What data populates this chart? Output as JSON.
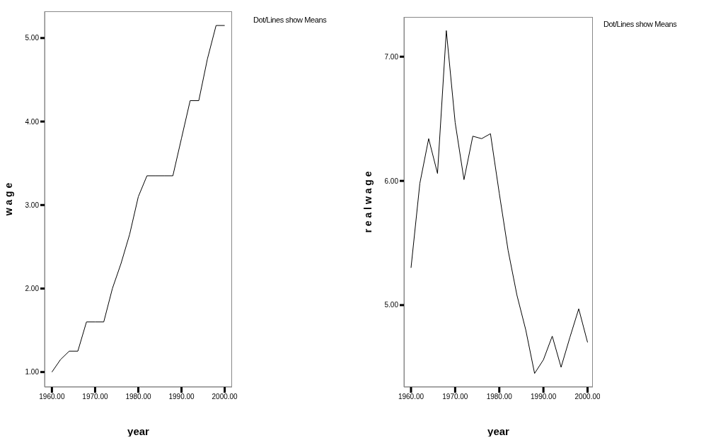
{
  "chart_data": [
    {
      "type": "line",
      "xlabel": "year",
      "ylabel": "w a g e",
      "annotations": [
        "Dot/Lines show Means"
      ],
      "x": [
        1960,
        1962,
        1964,
        1966,
        1968,
        1970,
        1972,
        1974,
        1976,
        1978,
        1980,
        1982,
        1984,
        1986,
        1988,
        1990,
        1992,
        1994,
        1996,
        1998,
        2000
      ],
      "series": [
        {
          "color": "#000000",
          "values": [
            1.0,
            1.15,
            1.25,
            1.25,
            1.6,
            1.6,
            1.6,
            2.0,
            2.3,
            2.65,
            3.1,
            3.35,
            3.35,
            3.35,
            3.35,
            3.8,
            4.25,
            4.25,
            4.75,
            5.15,
            5.15
          ]
        }
      ],
      "xlim": [
        1958.3,
        2001.7
      ],
      "ylim": [
        0.82,
        5.32
      ],
      "xticks": [
        {
          "value": 1960,
          "label": "1960.00"
        },
        {
          "value": 1970,
          "label": "1970.00"
        },
        {
          "value": 1980,
          "label": "1980.00"
        },
        {
          "value": 1990,
          "label": "1990.00"
        },
        {
          "value": 2000,
          "label": "2000.00"
        }
      ],
      "yticks": [
        {
          "value": 1,
          "label": "1.00"
        },
        {
          "value": 2,
          "label": "2.00"
        },
        {
          "value": 3,
          "label": "3.00"
        },
        {
          "value": 4,
          "label": "4.00"
        },
        {
          "value": 5,
          "label": "5.00"
        }
      ],
      "grid": false,
      "legend": false,
      "marker": "none",
      "line_style": "solid"
    },
    {
      "type": "line",
      "xlabel": "year",
      "ylabel": "r e a l w a g e",
      "annotations": [
        "Dot/Lines show Means"
      ],
      "x": [
        1960,
        1962,
        1964,
        1966,
        1968,
        1970,
        1972,
        1974,
        1976,
        1978,
        1980,
        1982,
        1984,
        1986,
        1988,
        1990,
        1992,
        1994,
        1996,
        1998,
        2000
      ],
      "series": [
        {
          "color": "#000000",
          "values": [
            5.3,
            5.98,
            6.34,
            6.06,
            7.21,
            6.47,
            6.01,
            6.36,
            6.34,
            6.38,
            5.9,
            5.44,
            5.08,
            4.8,
            4.45,
            4.56,
            4.75,
            4.5,
            4.74,
            4.97,
            4.7
          ]
        }
      ],
      "xlim": [
        1958.4,
        2001.2
      ],
      "ylim": [
        4.34,
        7.32
      ],
      "xticks": [
        {
          "value": 1960,
          "label": "1960.00"
        },
        {
          "value": 1970,
          "label": "1970.00"
        },
        {
          "value": 1980,
          "label": "1980.00"
        },
        {
          "value": 1990,
          "label": "1990.00"
        },
        {
          "value": 2000,
          "label": "2000.00"
        }
      ],
      "yticks": [
        {
          "value": 5,
          "label": "5.00"
        },
        {
          "value": 6,
          "label": "6.00"
        },
        {
          "value": 7,
          "label": "7.00"
        }
      ],
      "grid": false,
      "legend": false,
      "marker": "none",
      "line_style": "solid"
    }
  ]
}
